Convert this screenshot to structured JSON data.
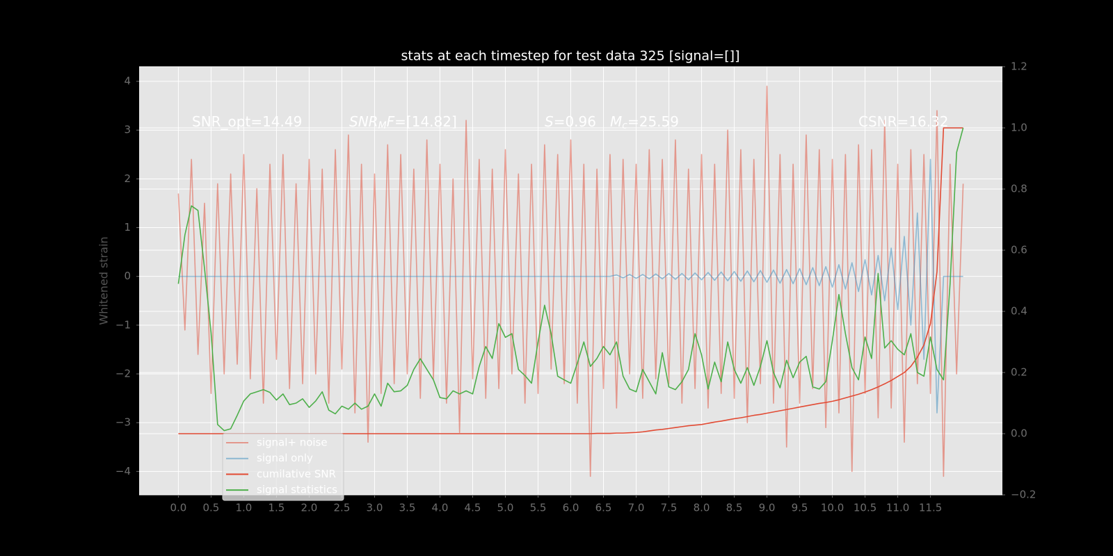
{
  "chart_data": {
    "type": "line",
    "title": "stats at each timestep for test data 325 [signal=[]]",
    "ylabel": "Whitened strain",
    "annotations": [
      [
        "SNR_opt=14.49"
      ],
      [
        "SNR",
        "M",
        "F",
        "=[14.82]"
      ],
      [
        "S",
        "=0.96"
      ],
      [
        "M",
        "c",
        "=25.59"
      ],
      [
        "CSNR=16.32"
      ]
    ],
    "grid": true,
    "xlim": [
      -0.6,
      12.6
    ],
    "ylim": [
      -4.48,
      4.3
    ],
    "y2lim": [
      -0.2,
      1.2
    ],
    "xticks": [
      {
        "value": 0,
        "label": "0.0"
      },
      0.5,
      {
        "value": 1,
        "label": "1.0"
      },
      1.5,
      {
        "value": 2,
        "label": "2.0"
      },
      2.5,
      {
        "value": 3,
        "label": "3.0"
      },
      3.5,
      {
        "value": 4,
        "label": "4.0"
      },
      4.5,
      {
        "value": 5,
        "label": "5.0"
      },
      5.5,
      {
        "value": 6,
        "label": "6.0"
      },
      6.5,
      {
        "value": 7,
        "label": "7.0"
      },
      7.5,
      {
        "value": 8,
        "label": "8.0"
      },
      8.5,
      {
        "value": 9,
        "label": "9.0"
      },
      9.5,
      {
        "value": 10,
        "label": "10.0"
      },
      10.5,
      {
        "value": 11,
        "label": "11.0"
      },
      11.5
    ],
    "yticks": [
      {
        "value": -4,
        "label": "−4"
      },
      {
        "value": -3,
        "label": "−3"
      },
      {
        "value": -2,
        "label": "−2"
      },
      {
        "value": -1,
        "label": "−1"
      },
      0,
      1,
      2,
      3,
      4
    ],
    "y2ticks": [
      {
        "value": -0.2,
        "label": "−0.2"
      },
      {
        "value": 0,
        "label": "0.0"
      },
      0.2,
      0.4,
      0.6,
      0.8,
      {
        "value": 1,
        "label": "1.0"
      },
      1.2
    ],
    "x": [
      0,
      0.1,
      0.2,
      0.3,
      0.4,
      0.5,
      0.6,
      0.7,
      0.8,
      0.9,
      1,
      1.1,
      1.2,
      1.3,
      1.4,
      1.5,
      1.6,
      1.7,
      1.8,
      1.9,
      2,
      2.1,
      2.2,
      2.3,
      2.4,
      2.5,
      2.6,
      2.7,
      2.8,
      2.9,
      3,
      3.1,
      3.2,
      3.3,
      3.4,
      3.5,
      3.6,
      3.7,
      3.8,
      3.9,
      4,
      4.1,
      4.2,
      4.3,
      4.4,
      4.5,
      4.6,
      4.7,
      4.8,
      4.9,
      5,
      5.1,
      5.2,
      5.3,
      5.4,
      5.5,
      5.6,
      5.7,
      5.8,
      5.9,
      6,
      6.1,
      6.2,
      6.3,
      6.4,
      6.5,
      6.6,
      6.7,
      6.8,
      6.9,
      7,
      7.1,
      7.2,
      7.3,
      7.4,
      7.5,
      7.6,
      7.7,
      7.8,
      7.9,
      8,
      8.1,
      8.2,
      8.3,
      8.4,
      8.5,
      8.6,
      8.7,
      8.8,
      8.9,
      9,
      9.1,
      9.2,
      9.3,
      9.4,
      9.5,
      9.6,
      9.7,
      9.8,
      9.9,
      10,
      10.1,
      10.2,
      10.3,
      10.4,
      10.5,
      10.6,
      10.7,
      10.8,
      10.9,
      11,
      11.1,
      11.2,
      11.3,
      11.4,
      11.5,
      11.6,
      11.7,
      11.8,
      11.9,
      12
    ],
    "series": [
      {
        "name": "signal+ noise",
        "color": "#E24A33",
        "alpha": 0.5,
        "values": [
          1.7,
          -1.1,
          2.4,
          -1.6,
          1.5,
          -2.4,
          1.9,
          -2.0,
          2.1,
          -1.8,
          2.5,
          -2.1,
          1.8,
          -2.6,
          2.3,
          -1.7,
          2.5,
          -2.3,
          1.9,
          -2.2,
          2.4,
          -2.0,
          2.2,
          -2.6,
          2.6,
          -1.9,
          2.9,
          -2.8,
          2.3,
          -3.4,
          2.1,
          -2.4,
          2.7,
          -2.2,
          2.5,
          -2.0,
          2.2,
          -2.5,
          2.8,
          -2.1,
          2.3,
          -2.6,
          2.0,
          -3.2,
          3.2,
          -2.1,
          2.4,
          -2.5,
          2.2,
          -2.3,
          2.6,
          -2.0,
          2.1,
          -2.6,
          2.3,
          -2.4,
          2.7,
          -1.9,
          2.5,
          -2.2,
          2.8,
          -2.6,
          2.3,
          -4.1,
          2.2,
          -2.3,
          2.5,
          -2.7,
          2.4,
          -2.0,
          2.3,
          -2.5,
          2.6,
          -2.1,
          2.4,
          -2.2,
          2.8,
          -2.6,
          2.2,
          -2.3,
          2.5,
          -2.7,
          2.3,
          -2.4,
          3.0,
          -2.5,
          2.6,
          -3.0,
          2.4,
          -2.2,
          3.9,
          -2.6,
          2.5,
          -3.5,
          2.3,
          -2.6,
          2.9,
          -2.3,
          2.6,
          -3.1,
          2.4,
          -2.8,
          2.5,
          -4.0,
          2.7,
          -2.4,
          2.6,
          -2.9,
          3.2,
          -2.7,
          2.3,
          -3.4,
          2.6,
          -2.2,
          2.5,
          -2.4,
          3.4,
          -4.1,
          2.3,
          -2.0,
          1.9
        ]
      },
      {
        "name": "signal only",
        "color": "#348ABD",
        "alpha": 0.5,
        "values": [
          0,
          0,
          0,
          0,
          0,
          0,
          0,
          0,
          0,
          0,
          0,
          0,
          0,
          0,
          0,
          0,
          0,
          0,
          0,
          0,
          0,
          0,
          0,
          0,
          0,
          0,
          0,
          0,
          0,
          0,
          0,
          0,
          0,
          0,
          0,
          0,
          0,
          0,
          0,
          0,
          0,
          0,
          0,
          0,
          0,
          0,
          0,
          0,
          0,
          0,
          0,
          0,
          0,
          0,
          0,
          0,
          0,
          0,
          0,
          0,
          0,
          0,
          0,
          0,
          0,
          0,
          0,
          0.03,
          -0.03,
          0.04,
          -0.04,
          0.04,
          -0.05,
          0.05,
          -0.05,
          0.06,
          -0.06,
          0.06,
          -0.07,
          0.07,
          -0.07,
          0.08,
          -0.08,
          0.09,
          -0.09,
          0.1,
          -0.1,
          0.11,
          -0.11,
          0.12,
          -0.12,
          0.13,
          -0.14,
          0.14,
          -0.15,
          0.16,
          -0.17,
          0.18,
          -0.19,
          0.2,
          -0.22,
          0.24,
          -0.26,
          0.28,
          -0.31,
          0.34,
          -0.38,
          0.43,
          -0.5,
          0.58,
          -0.68,
          0.82,
          -1.0,
          1.3,
          -1.7,
          2.4,
          -2.8,
          0,
          0,
          0,
          0
        ]
      },
      {
        "name": "cumilative SNR",
        "color": "#E24A33",
        "alpha": 1,
        "axis": "y2",
        "values": [
          0,
          0,
          0,
          0,
          0,
          0,
          0,
          0,
          0,
          0,
          0,
          0,
          0,
          0,
          0,
          0,
          0,
          0,
          0,
          0,
          0,
          0,
          0,
          0,
          0,
          0,
          0,
          0,
          0,
          0,
          0,
          0,
          0,
          0,
          0,
          0,
          0,
          0,
          0,
          0,
          0,
          0,
          0,
          0,
          0,
          0,
          0,
          0,
          0,
          0,
          0,
          0,
          0,
          0,
          0,
          0,
          0,
          0,
          0,
          0,
          0,
          0,
          0,
          0,
          0.001,
          0.001,
          0.001,
          0.002,
          0.002,
          0.003,
          0.004,
          0.006,
          0.009,
          0.012,
          0.014,
          0.017,
          0.02,
          0.023,
          0.026,
          0.028,
          0.03,
          0.034,
          0.038,
          0.041,
          0.045,
          0.049,
          0.052,
          0.056,
          0.06,
          0.063,
          0.067,
          0.071,
          0.075,
          0.079,
          0.083,
          0.087,
          0.091,
          0.095,
          0.099,
          0.102,
          0.106,
          0.111,
          0.117,
          0.123,
          0.129,
          0.136,
          0.144,
          0.153,
          0.163,
          0.174,
          0.187,
          0.2,
          0.22,
          0.25,
          0.29,
          0.36,
          0.53,
          1.0,
          1.0,
          1.0,
          1.0
        ]
      },
      {
        "name": "signal statistics",
        "color": "#4daf4a",
        "alpha": 1,
        "axis": "y2",
        "values": [
          0.49,
          0.65,
          0.745,
          0.73,
          0.54,
          0.33,
          0.03,
          0.01,
          0.016,
          0.06,
          0.107,
          0.13,
          0.137,
          0.144,
          0.135,
          0.11,
          0.13,
          0.095,
          0.1,
          0.114,
          0.086,
          0.107,
          0.137,
          0.077,
          0.065,
          0.09,
          0.08,
          0.1,
          0.08,
          0.09,
          0.13,
          0.09,
          0.165,
          0.137,
          0.14,
          0.158,
          0.21,
          0.245,
          0.21,
          0.176,
          0.118,
          0.114,
          0.14,
          0.13,
          0.14,
          0.13,
          0.22,
          0.285,
          0.246,
          0.36,
          0.315,
          0.327,
          0.21,
          0.19,
          0.165,
          0.3,
          0.42,
          0.327,
          0.188,
          0.176,
          0.165,
          0.23,
          0.3,
          0.22,
          0.246,
          0.285,
          0.258,
          0.3,
          0.188,
          0.146,
          0.137,
          0.21,
          0.17,
          0.13,
          0.265,
          0.153,
          0.144,
          0.17,
          0.21,
          0.327,
          0.258,
          0.146,
          0.234,
          0.17,
          0.3,
          0.21,
          0.165,
          0.216,
          0.158,
          0.22,
          0.304,
          0.2,
          0.15,
          0.24,
          0.183,
          0.234,
          0.253,
          0.153,
          0.146,
          0.17,
          0.304,
          0.455,
          0.327,
          0.216,
          0.176,
          0.316,
          0.246,
          0.524,
          0.28,
          0.304,
          0.276,
          0.258,
          0.327,
          0.2,
          0.188,
          0.316,
          0.21,
          0.176,
          0.49,
          0.92,
          1.0
        ]
      }
    ]
  }
}
